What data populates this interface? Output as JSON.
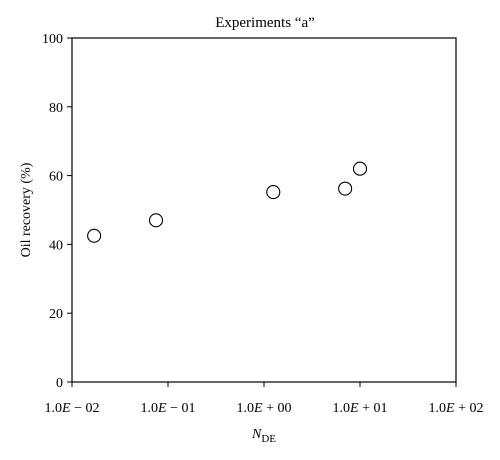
{
  "chart_data": {
    "type": "scatter",
    "title": "Experiments “a”",
    "xlabel": {
      "main": "N",
      "subscript": "DE"
    },
    "ylabel": "Oil recovery (%)",
    "x_scale": "log",
    "xlim": [
      0.01,
      100
    ],
    "ylim": [
      0,
      100
    ],
    "x_ticks": [
      {
        "value": 0.01,
        "mantissa": "1.0",
        "e": "E",
        "rest": " − 02"
      },
      {
        "value": 0.1,
        "mantissa": "1.0",
        "e": "E",
        "rest": " − 01"
      },
      {
        "value": 1,
        "mantissa": "1.0",
        "e": "E",
        "rest": " + 00"
      },
      {
        "value": 10,
        "mantissa": "1.0",
        "e": "E",
        "rest": " + 01"
      },
      {
        "value": 100,
        "mantissa": "1.0",
        "e": "E",
        "rest": " + 02"
      }
    ],
    "y_ticks": [
      {
        "value": 0,
        "label": "0"
      },
      {
        "value": 20,
        "label": "20"
      },
      {
        "value": 40,
        "label": "40"
      },
      {
        "value": 60,
        "label": "60"
      },
      {
        "value": 80,
        "label": "80"
      },
      {
        "value": 100,
        "label": "100"
      }
    ],
    "grid": false,
    "marker": "open-circle",
    "points": [
      {
        "x": 0.017,
        "y": 42.5
      },
      {
        "x": 0.075,
        "y": 47
      },
      {
        "x": 1.25,
        "y": 55.2
      },
      {
        "x": 7.0,
        "y": 56.2
      },
      {
        "x": 10.0,
        "y": 62
      }
    ]
  }
}
